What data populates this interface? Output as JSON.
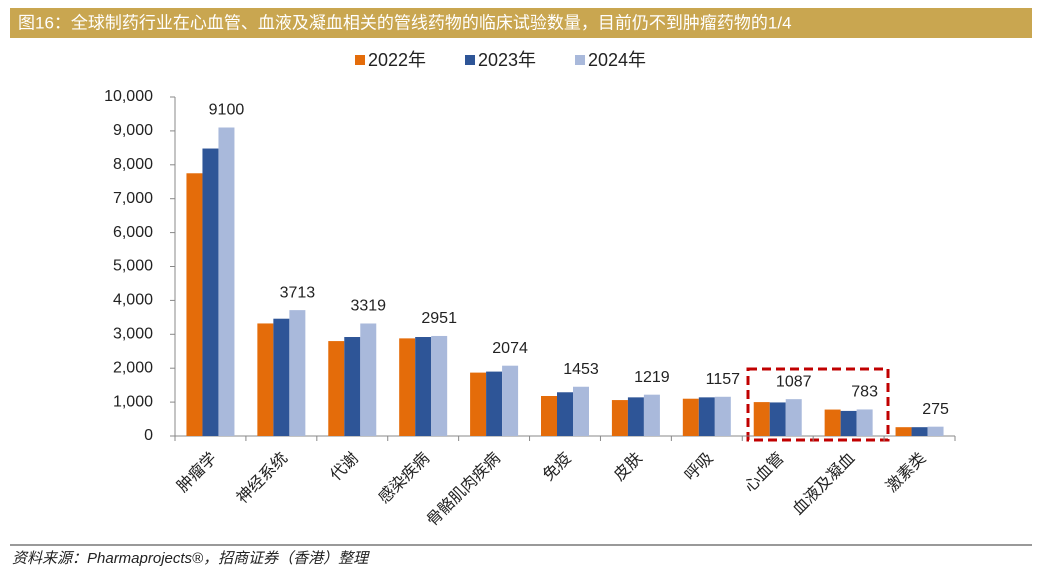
{
  "chart_data": {
    "type": "bar",
    "title": "图16：全球制药行业在心血管、血液及凝血相关的管线药物的临床试验数量，目前仍不到肿瘤药物的1/4",
    "source": "资料来源：Pharmaprojects®，招商证券（香港）整理",
    "categories": [
      "肿瘤学",
      "神经系统",
      "代谢",
      "感染疾病",
      "骨骼肌肉疾病",
      "免疫",
      "皮肤",
      "呼吸",
      "心血管",
      "血液及凝血",
      "激素类"
    ],
    "series": [
      {
        "name": "2022年",
        "color": "#e46c0a",
        "values": [
          7750,
          3320,
          2800,
          2880,
          1870,
          1180,
          1060,
          1100,
          1000,
          780,
          260
        ]
      },
      {
        "name": "2023年",
        "color": "#2e5597",
        "values": [
          8480,
          3460,
          2920,
          2920,
          1900,
          1290,
          1140,
          1140,
          990,
          740,
          260
        ]
      },
      {
        "name": "2024年",
        "color": "#a9b9db",
        "values": [
          9100,
          3713,
          3319,
          2951,
          2074,
          1453,
          1219,
          1157,
          1087,
          783,
          275
        ]
      }
    ],
    "data_labels_series": 2,
    "ylim": [
      0,
      10000
    ],
    "yticks": [
      0,
      {
        "value": 1000,
        "label": "1,000"
      },
      {
        "value": 2000,
        "label": "2,000"
      },
      {
        "value": 3000,
        "label": "3,000"
      },
      {
        "value": 4000,
        "label": "4,000"
      },
      {
        "value": 5000,
        "label": "5,000"
      },
      {
        "value": 6000,
        "label": "6,000"
      },
      {
        "value": 7000,
        "label": "7,000"
      },
      {
        "value": 8000,
        "label": "8,000"
      },
      {
        "value": 9000,
        "label": "9,000"
      },
      {
        "value": 10000,
        "label": "10,000"
      }
    ],
    "grid": false,
    "legend": "top"
  }
}
